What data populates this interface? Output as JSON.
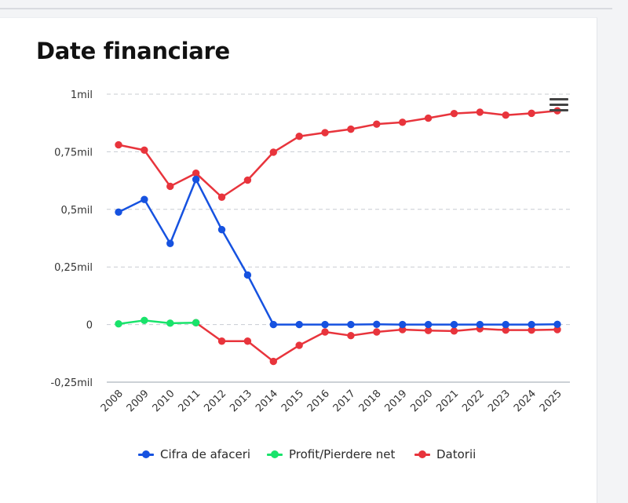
{
  "page": {
    "title": "Date financiare"
  },
  "chart_data": {
    "type": "line",
    "title": "",
    "xlabel": "",
    "ylabel": "",
    "categories": [
      "2008",
      "2009",
      "2010",
      "2011",
      "2012",
      "2013",
      "2014",
      "2015",
      "2016",
      "2017",
      "2018",
      "2019",
      "2020",
      "2021",
      "2022",
      "2023",
      "2024",
      "2025"
    ],
    "ylim": [
      -250000,
      1000000
    ],
    "yticks": [
      1000000,
      750000,
      500000,
      250000,
      0,
      -250000
    ],
    "ytick_labels": [
      "1mil",
      "0,75mil",
      "0,5mil",
      "0,25mil",
      "0",
      "-0,25mil"
    ],
    "grid": true,
    "legend_position": "bottom",
    "series": [
      {
        "name": "Cifra de afaceri",
        "color": "#1652e0",
        "values": [
          488000,
          543000,
          352000,
          630000,
          412000,
          215000,
          0,
          0,
          0,
          0,
          1000,
          0,
          0,
          0,
          0,
          0,
          0,
          1000
        ]
      },
      {
        "name": "Profit/Pierdere net",
        "color": "#19e36b",
        "values": [
          3000,
          18000,
          6000,
          8000,
          null,
          null,
          null,
          null,
          null,
          null,
          null,
          null,
          null,
          null,
          null,
          null,
          null,
          null
        ]
      },
      {
        "name": "Datorii",
        "color": "#e8343c",
        "values": [
          null,
          null,
          null,
          8000,
          -72000,
          -72000,
          -160000,
          -90000,
          -32000,
          -48000,
          -32000,
          -22000,
          -26000,
          -28000,
          -18000,
          -24000,
          -24000,
          -22000
        ],
        "upper_values": [
          780000,
          757000,
          600000,
          657000,
          553000,
          627000,
          748000,
          817000,
          833000,
          848000,
          870000,
          878000,
          896000,
          916000,
          922000,
          909000,
          917000,
          928000
        ]
      }
    ]
  },
  "menu": {
    "icon": "hamburger-menu-icon"
  }
}
